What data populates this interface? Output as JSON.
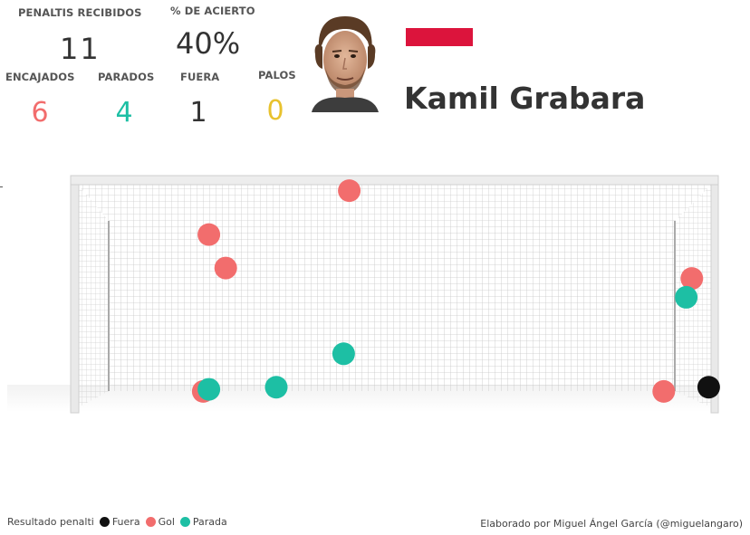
{
  "stats": {
    "received_label": "PENALTIS RECIBIDOS",
    "received_value": "11",
    "accuracy_label": "% DE ACIERTO",
    "accuracy_value": "40%",
    "conceded_label": "ENCAJADOS",
    "conceded_value": "6",
    "saved_label": "PARADOS",
    "saved_value": "4",
    "out_label": "FUERA",
    "out_value": "1",
    "posts_label": "PALOS",
    "posts_value": "0"
  },
  "player": {
    "name": "Kamil Grabara",
    "flag_icon": "poland-flag-icon",
    "flag_colors": [
      "#ffffff",
      "#dc143c"
    ]
  },
  "colors": {
    "gol": "#f26d6d",
    "parada": "#1dbfa4",
    "fuera": "#111111",
    "conceded_text": "#f26d6d",
    "saved_text": "#1dbfa4",
    "out_text": "#333333",
    "posts_text": "#e8c22e"
  },
  "chart_data": {
    "type": "scatter",
    "title": "",
    "legend_title": "Resultado penalti",
    "legend_position": "bottom-left",
    "categories": [
      "Fuera",
      "Gol",
      "Parada"
    ],
    "series": [
      {
        "name": "Fuera",
        "color": "#111111",
        "points": [
          {
            "x": 1.02,
            "y": 0.04
          }
        ]
      },
      {
        "name": "Gol",
        "color": "#f26d6d",
        "points": [
          {
            "x": 0.38,
            "y": 0.98
          },
          {
            "x": 0.13,
            "y": 0.77
          },
          {
            "x": 0.16,
            "y": 0.61
          },
          {
            "x": 0.99,
            "y": 0.56
          },
          {
            "x": 0.12,
            "y": 0.02
          },
          {
            "x": 0.94,
            "y": 0.02
          }
        ]
      },
      {
        "name": "Parada",
        "color": "#1dbfa4",
        "points": [
          {
            "x": 0.98,
            "y": 0.47
          },
          {
            "x": 0.37,
            "y": 0.2
          },
          {
            "x": 0.13,
            "y": 0.03
          },
          {
            "x": 0.25,
            "y": 0.04
          }
        ]
      }
    ],
    "xlim": [
      0,
      1
    ],
    "ylim": [
      0,
      1
    ],
    "grid": false
  },
  "legend": {
    "title": "Resultado penalti",
    "items": [
      "Fuera",
      "Gol",
      "Parada"
    ]
  },
  "credit": "Elaborado por Miguel Ángel García (@miguelangaro)"
}
